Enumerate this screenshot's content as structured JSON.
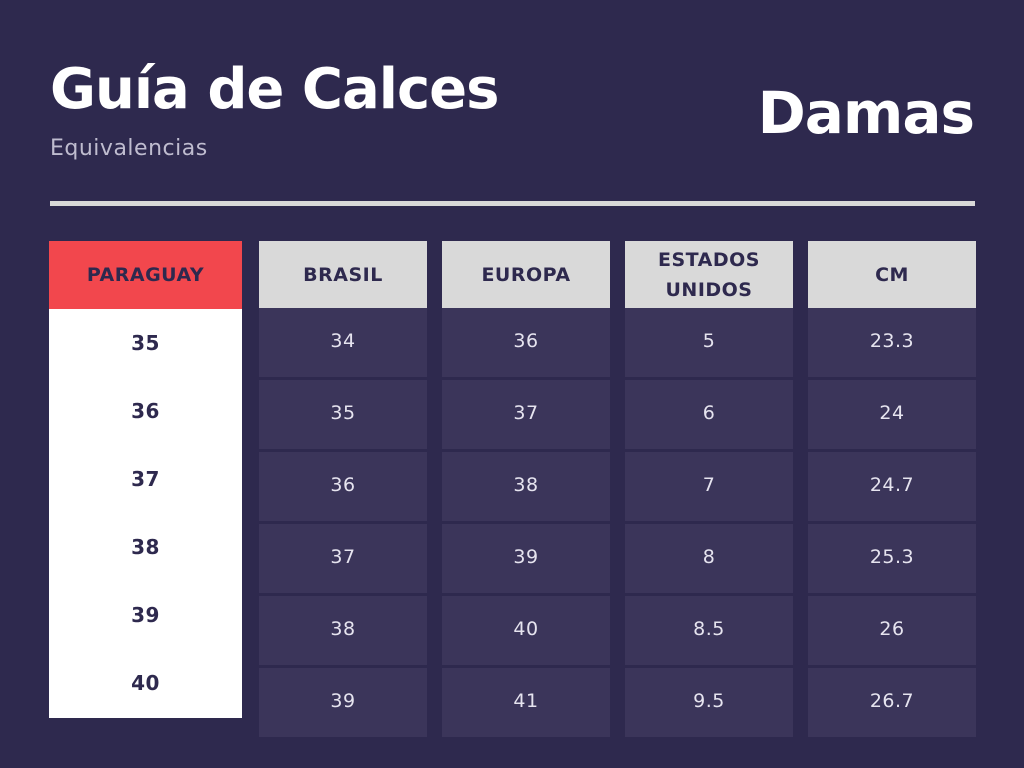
{
  "header": {
    "title": "Guía de Calces",
    "subtitle": "Equivalencias",
    "category": "Damas"
  },
  "table": {
    "headers": [
      "PARAGUAY",
      "BRASIL",
      "EUROPA",
      "ESTADOS UNIDOS",
      "CM"
    ],
    "columns": {
      "paraguay": [
        "35",
        "36",
        "37",
        "38",
        "39",
        "40"
      ],
      "brasil": [
        "34",
        "35",
        "36",
        "37",
        "38",
        "39"
      ],
      "europa": [
        "36",
        "37",
        "38",
        "39",
        "40",
        "41"
      ],
      "estados_unidos": [
        "5",
        "6",
        "7",
        "8",
        "8.5",
        "9.5"
      ],
      "cm": [
        "23.3",
        "24",
        "24.7",
        "25.3",
        "26",
        "26.7"
      ]
    }
  },
  "colors": {
    "background": "#2e294e",
    "highlight": "#f2474d",
    "header_gray": "#d9d9d9",
    "cell_bg": "#3b355a"
  }
}
